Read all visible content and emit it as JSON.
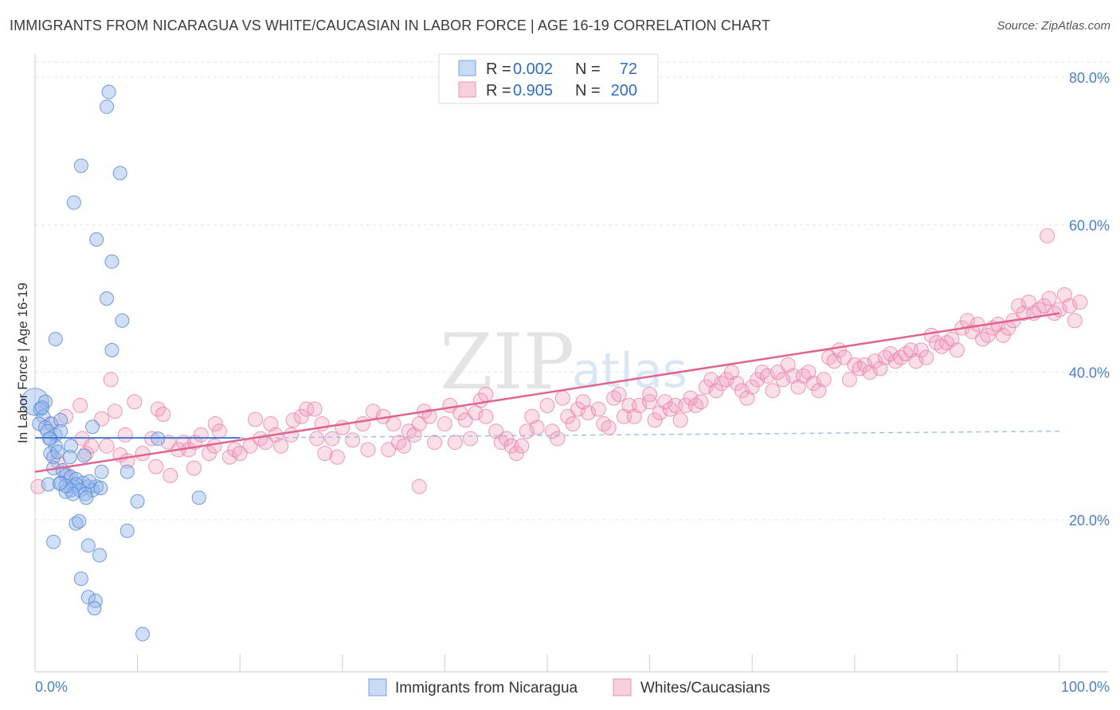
{
  "title": "IMMIGRANTS FROM NICARAGUA VS WHITE/CAUCASIAN IN LABOR FORCE | AGE 16-19 CORRELATION CHART",
  "source": "Source: ZipAtlas.com",
  "watermark": {
    "zip": "ZIP",
    "atlas": "atlas"
  },
  "colors": {
    "blue": "#6b9ee0",
    "pink": "#e87aa0",
    "blue_line": "#3f79d1",
    "pink_line": "#e0648f"
  },
  "legend": {
    "r_label": "R =",
    "n_label": "N =",
    "rows": [
      {
        "r": "0.002",
        "n": "72"
      },
      {
        "r": "0.905",
        "n": "200"
      }
    ]
  },
  "chart_data": {
    "type": "scatter",
    "title": "IMMIGRANTS FROM NICARAGUA VS WHITE/CAUCASIAN IN LABOR FORCE | AGE 16-19 CORRELATION CHART",
    "xlabel": "",
    "ylabel": "In Labor Force | Age 16-19",
    "xlim": [
      0,
      100
    ],
    "ylim": [
      0,
      82
    ],
    "x_tick_labels": [
      "0.0%",
      "100.0%"
    ],
    "y_ticks": [
      20,
      40,
      60,
      80
    ],
    "y_tick_labels": [
      "20.0%",
      "40.0%",
      "60.0%",
      "80.0%"
    ],
    "grid": true,
    "legend_position": "top-center",
    "series": [
      {
        "name": "Immigrants from Nicaragua",
        "color": "#6b9ee0",
        "R": 0.002,
        "N": 72,
        "trend": {
          "x": [
            0,
            20
          ],
          "y": [
            31.1,
            31.1
          ],
          "dashed_extension_to": [
            100,
            32.0
          ]
        },
        "points": [
          [
            7,
            76
          ],
          [
            7.2,
            78
          ],
          [
            4.5,
            68
          ],
          [
            8.3,
            67
          ],
          [
            3.8,
            63
          ],
          [
            6,
            58
          ],
          [
            7.5,
            55
          ],
          [
            7,
            50
          ],
          [
            8.5,
            47
          ],
          [
            2,
            44.5
          ],
          [
            7.5,
            43
          ],
          [
            0,
            36
          ],
          [
            1,
            36
          ],
          [
            0.5,
            35
          ],
          [
            0.8,
            34
          ],
          [
            1.6,
            33
          ],
          [
            0.4,
            33
          ],
          [
            2.5,
            33.5
          ],
          [
            1,
            32.5
          ],
          [
            5.6,
            32.6
          ],
          [
            2,
            31.5
          ],
          [
            2.5,
            32
          ],
          [
            3.5,
            30
          ],
          [
            1.5,
            31
          ],
          [
            12,
            31
          ],
          [
            2,
            30
          ],
          [
            1.5,
            29
          ],
          [
            1.8,
            28.5
          ],
          [
            3.4,
            28.5
          ],
          [
            4.8,
            28.7
          ],
          [
            1.8,
            27
          ],
          [
            2.7,
            26.7
          ],
          [
            6.5,
            26.5
          ],
          [
            9,
            26.5
          ],
          [
            3,
            26
          ],
          [
            3.5,
            25.8
          ],
          [
            4,
            25.5
          ],
          [
            2.5,
            25
          ],
          [
            4.7,
            25
          ],
          [
            3.8,
            24.5
          ],
          [
            4,
            24.8
          ],
          [
            5.2,
            24.5
          ],
          [
            1.3,
            24.8
          ],
          [
            3.5,
            24
          ],
          [
            4.4,
            24
          ],
          [
            6,
            24.5
          ],
          [
            3,
            23.8
          ],
          [
            3.7,
            23.5
          ],
          [
            5.6,
            24
          ],
          [
            6.4,
            24.3
          ],
          [
            4.9,
            23.5
          ],
          [
            5,
            23
          ],
          [
            16,
            23
          ],
          [
            10,
            22.5
          ],
          [
            4,
            19.5
          ],
          [
            4.3,
            19.8
          ],
          [
            9,
            18.5
          ],
          [
            1.8,
            17
          ],
          [
            5.2,
            16.5
          ],
          [
            6.3,
            15.2
          ],
          [
            4.5,
            12
          ],
          [
            5.2,
            9.5
          ],
          [
            5.9,
            9
          ],
          [
            5.8,
            8
          ],
          [
            10.5,
            4.5
          ],
          [
            3,
            24.6
          ],
          [
            2.4,
            24.9
          ],
          [
            1.2,
            32
          ],
          [
            0.7,
            35.2
          ],
          [
            1.4,
            31
          ],
          [
            2.2,
            29.2
          ],
          [
            5.3,
            25.2
          ]
        ]
      },
      {
        "name": "Whites/Caucasians",
        "color": "#e87aa0",
        "R": 0.905,
        "N": 200,
        "trend": {
          "x": [
            0,
            100
          ],
          "y": [
            26.5,
            48.0
          ]
        },
        "points": [
          [
            0.3,
            24.5
          ],
          [
            1.5,
            33
          ],
          [
            2.2,
            28
          ],
          [
            3,
            34
          ],
          [
            3.2,
            26
          ],
          [
            4.4,
            35.5
          ],
          [
            4.6,
            31
          ],
          [
            5,
            29
          ],
          [
            5.5,
            30
          ],
          [
            6.5,
            33.7
          ],
          [
            7,
            30
          ],
          [
            7.4,
            39
          ],
          [
            7.8,
            34.7
          ],
          [
            8.3,
            28.8
          ],
          [
            8.8,
            31.5
          ],
          [
            9,
            28
          ],
          [
            9.7,
            36
          ],
          [
            10.5,
            29
          ],
          [
            11.4,
            31
          ],
          [
            11.8,
            27.2
          ],
          [
            12,
            35
          ],
          [
            12.5,
            34.3
          ],
          [
            13,
            30.5
          ],
          [
            13.2,
            26
          ],
          [
            14,
            29.5
          ],
          [
            14.5,
            30.5
          ],
          [
            15,
            29.5
          ],
          [
            15.5,
            27
          ],
          [
            15.6,
            30.5
          ],
          [
            16.2,
            31.5
          ],
          [
            17,
            29
          ],
          [
            17.5,
            30
          ],
          [
            17.6,
            33
          ],
          [
            18,
            32
          ],
          [
            19,
            28.5
          ],
          [
            19.5,
            29.5
          ],
          [
            20,
            29
          ],
          [
            21,
            30
          ],
          [
            21.5,
            33.6
          ],
          [
            22,
            31
          ],
          [
            22.5,
            30.5
          ],
          [
            23,
            33
          ],
          [
            23.5,
            31.5
          ],
          [
            24,
            30
          ],
          [
            25,
            31.5
          ],
          [
            25.2,
            33.5
          ],
          [
            26,
            34
          ],
          [
            26.5,
            35
          ],
          [
            27.3,
            35
          ],
          [
            27.5,
            31
          ],
          [
            28,
            33
          ],
          [
            28.3,
            29
          ],
          [
            29,
            31
          ],
          [
            29.5,
            28.5
          ],
          [
            30,
            32.5
          ],
          [
            31,
            30.8
          ],
          [
            32,
            33
          ],
          [
            32.5,
            29.5
          ],
          [
            33,
            34.7
          ],
          [
            34,
            34
          ],
          [
            34.5,
            29.5
          ],
          [
            35,
            33
          ],
          [
            35.5,
            30.5
          ],
          [
            36,
            30
          ],
          [
            36.5,
            32
          ],
          [
            37,
            31.5
          ],
          [
            37.5,
            33
          ],
          [
            38,
            34.7
          ],
          [
            38.5,
            34
          ],
          [
            39,
            30.5
          ],
          [
            40,
            33
          ],
          [
            40.5,
            35.5
          ],
          [
            41,
            30.5
          ],
          [
            41.5,
            34.5
          ],
          [
            42,
            33.5
          ],
          [
            42.5,
            31
          ],
          [
            43,
            34.5
          ],
          [
            43.5,
            36.2
          ],
          [
            44,
            34
          ],
          [
            45,
            32
          ],
          [
            45.5,
            30.5
          ],
          [
            46,
            31
          ],
          [
            46.5,
            30
          ],
          [
            47,
            29
          ],
          [
            47.5,
            30
          ],
          [
            48,
            32
          ],
          [
            48.5,
            34
          ],
          [
            49,
            32.5
          ],
          [
            50,
            35.5
          ],
          [
            50.5,
            32
          ],
          [
            51,
            31
          ],
          [
            51.5,
            36.5
          ],
          [
            52,
            34
          ],
          [
            52.5,
            33
          ],
          [
            53,
            35
          ],
          [
            53.5,
            36
          ],
          [
            54,
            34.5
          ],
          [
            55,
            35
          ],
          [
            55.5,
            33
          ],
          [
            56,
            32.5
          ],
          [
            56.5,
            36.5
          ],
          [
            57,
            37
          ],
          [
            57.5,
            34
          ],
          [
            58,
            35.5
          ],
          [
            58.5,
            34
          ],
          [
            59,
            35.5
          ],
          [
            60,
            36
          ],
          [
            60.5,
            33.5
          ],
          [
            61,
            34.5
          ],
          [
            61.5,
            36
          ],
          [
            62,
            35
          ],
          [
            62.5,
            35.5
          ],
          [
            63,
            33.5
          ],
          [
            63.5,
            35.5
          ],
          [
            64,
            36.5
          ],
          [
            64.5,
            35.5
          ],
          [
            65,
            36
          ],
          [
            65.5,
            38
          ],
          [
            66,
            39
          ],
          [
            66.5,
            37.5
          ],
          [
            67,
            38.5
          ],
          [
            67.5,
            39
          ],
          [
            68,
            40
          ],
          [
            68.5,
            38.5
          ],
          [
            69,
            37.5
          ],
          [
            69.5,
            36.5
          ],
          [
            70,
            38
          ],
          [
            70.5,
            39
          ],
          [
            71,
            40
          ],
          [
            71.5,
            39.5
          ],
          [
            72,
            37.5
          ],
          [
            72.5,
            40
          ],
          [
            73,
            39
          ],
          [
            73.5,
            41
          ],
          [
            74,
            39.5
          ],
          [
            74.5,
            38
          ],
          [
            75,
            39.5
          ],
          [
            75.5,
            40
          ],
          [
            76,
            38.5
          ],
          [
            76.5,
            37.5
          ],
          [
            77,
            39
          ],
          [
            77.5,
            42
          ],
          [
            78,
            41.5
          ],
          [
            78.5,
            43
          ],
          [
            79,
            42
          ],
          [
            79.5,
            39
          ],
          [
            80,
            41
          ],
          [
            80.5,
            40.5
          ],
          [
            81,
            41
          ],
          [
            81.5,
            40
          ],
          [
            82,
            41.5
          ],
          [
            82.5,
            40.5
          ],
          [
            83,
            42
          ],
          [
            83.5,
            42.5
          ],
          [
            84,
            41.5
          ],
          [
            84.5,
            42
          ],
          [
            85,
            42.5
          ],
          [
            85.5,
            43
          ],
          [
            86,
            41.5
          ],
          [
            86.5,
            43
          ],
          [
            87,
            42
          ],
          [
            87.5,
            45
          ],
          [
            88,
            44
          ],
          [
            88.5,
            43.5
          ],
          [
            89,
            44
          ],
          [
            89.5,
            44.5
          ],
          [
            90,
            43
          ],
          [
            90.5,
            46
          ],
          [
            91,
            47
          ],
          [
            91.5,
            45.5
          ],
          [
            92,
            46.5
          ],
          [
            92.5,
            44.5
          ],
          [
            93,
            45
          ],
          [
            93.5,
            46
          ],
          [
            94,
            46.5
          ],
          [
            94.5,
            45
          ],
          [
            95,
            46
          ],
          [
            95.5,
            47
          ],
          [
            96,
            49
          ],
          [
            96.5,
            48
          ],
          [
            97,
            49.5
          ],
          [
            97.5,
            48
          ],
          [
            98,
            48.5
          ],
          [
            98.5,
            49
          ],
          [
            99,
            50
          ],
          [
            99.5,
            48
          ],
          [
            100,
            48.5
          ],
          [
            100.5,
            50.5
          ],
          [
            101,
            49
          ],
          [
            101.5,
            47
          ],
          [
            102,
            49.5
          ],
          [
            98.8,
            58.5
          ],
          [
            37.5,
            24.5
          ],
          [
            44,
            37
          ],
          [
            60,
            37
          ]
        ]
      }
    ]
  },
  "bottom_legend": [
    "Immigrants from Nicaragua",
    "Whites/Caucasians"
  ]
}
